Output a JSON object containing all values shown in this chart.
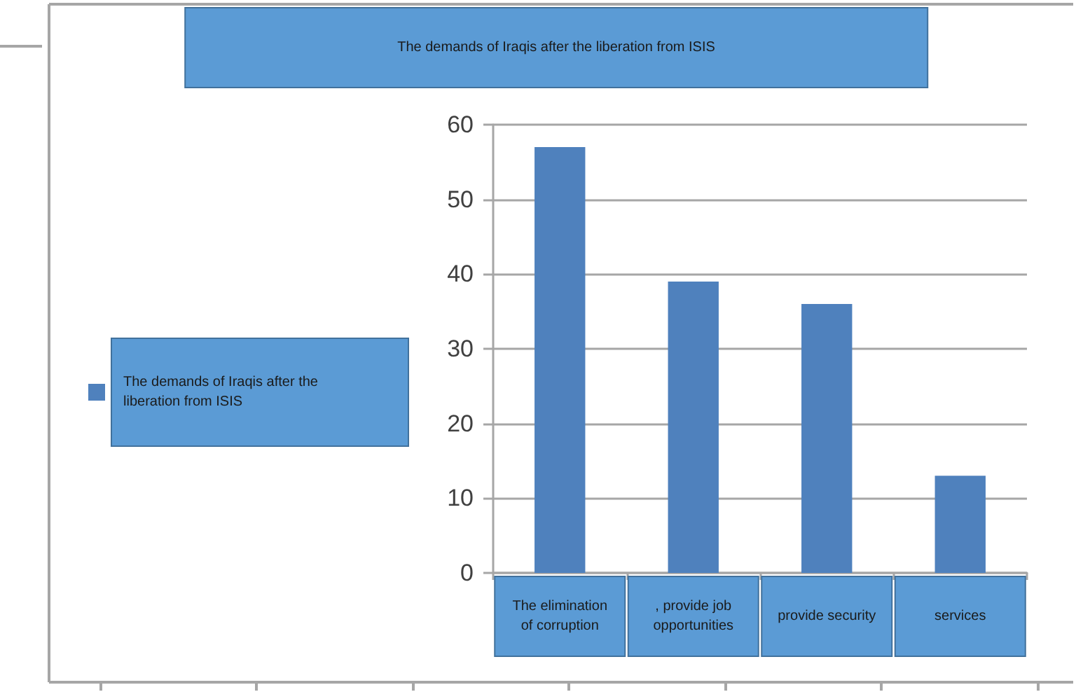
{
  "chart_data": {
    "type": "bar",
    "title": "The demands of Iraqis after the liberation from ISIS",
    "categories": [
      "The elimination of corruption",
      ", provide job opportunities",
      "provide security",
      "services"
    ],
    "series": [
      {
        "name": "The demands of Iraqis after the liberation from ISIS",
        "color": "#4f81bd",
        "values": [
          57,
          39,
          36,
          13
        ]
      }
    ],
    "ylim": [
      0,
      60
    ],
    "yticks": [
      0,
      10,
      20,
      30,
      40,
      50,
      60
    ],
    "grid": "y",
    "legend": "left"
  }
}
